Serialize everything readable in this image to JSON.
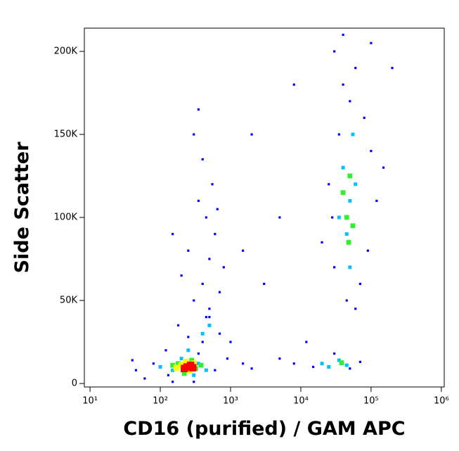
{
  "chart_data": {
    "type": "scatter",
    "x_label": "CD16 (purified) / GAM APC",
    "y_label": "Side Scatter",
    "x_scale": "log",
    "xlim": [
      8.3,
      1100000
    ],
    "xticks": [
      {
        "value": 10,
        "label": "10¹"
      },
      {
        "value": 100,
        "label": "10²"
      },
      {
        "value": 1000,
        "label": "10³"
      },
      {
        "value": 10000,
        "label": "10⁴"
      },
      {
        "value": 100000,
        "label": "10⁵"
      },
      {
        "value": 1000000,
        "label": "10⁶"
      }
    ],
    "ylim": [
      -2100,
      214000
    ],
    "yticks": [
      0,
      {
        "value": 50000,
        "label": "50K"
      },
      {
        "value": 100000,
        "label": "100K"
      },
      {
        "value": 150000,
        "label": "150K"
      },
      {
        "value": 200000,
        "label": "200K"
      }
    ],
    "series": [
      {
        "color": "#0000ff",
        "x": [
          60,
          80,
          120,
          150,
          400,
          600,
          900,
          45,
          1500,
          700,
          350,
          250,
          180,
          500,
          1000,
          130,
          300,
          2000,
          40,
          300,
          400,
          500,
          600,
          450,
          350,
          550,
          400,
          300,
          250,
          700,
          200,
          650,
          500,
          800,
          150,
          350,
          450,
          30000,
          40000,
          60000,
          50000,
          80000,
          35000,
          100000,
          25000,
          120000,
          30000,
          70000,
          45000,
          90000,
          200000,
          150000,
          28000,
          60000,
          40000,
          100000,
          20000,
          8000,
          15000,
          30000,
          50000,
          5000,
          70000,
          12000,
          3000,
          5000,
          2000,
          8000,
          1500
        ],
        "y": [
          3000,
          12000,
          20000,
          1000,
          25000,
          8000,
          15000,
          8000,
          12000,
          30000,
          18000,
          28000,
          35000,
          40000,
          25000,
          5000,
          1000,
          9000,
          14000,
          50000,
          60000,
          75000,
          90000,
          100000,
          110000,
          120000,
          135000,
          150000,
          80000,
          55000,
          65000,
          105000,
          45000,
          70000,
          90000,
          165000,
          40000,
          200000,
          180000,
          190000,
          170000,
          160000,
          150000,
          140000,
          120000,
          110000,
          70000,
          60000,
          50000,
          80000,
          190000,
          130000,
          100000,
          45000,
          210000,
          205000,
          85000,
          12000,
          10000,
          18000,
          9000,
          15000,
          13000,
          25000,
          60000,
          100000,
          150000,
          180000,
          80000
        ]
      },
      {
        "color": "#00c0ff",
        "x": [
          150,
          200,
          350,
          100,
          450,
          250,
          300,
          400,
          500,
          40000,
          50000,
          45000,
          60000,
          35000,
          55000,
          50000,
          20000,
          35000,
          45000,
          25000
        ],
        "y": [
          8000,
          15000,
          12000,
          10000,
          8000,
          20000,
          5000,
          30000,
          35000,
          130000,
          110000,
          90000,
          120000,
          100000,
          150000,
          70000,
          12000,
          14000,
          11000,
          10000
        ]
      },
      {
        "color": "#30f030",
        "x": [
          180,
          320,
          220,
          280,
          150,
          380,
          45000,
          50000,
          40000,
          55000,
          48000,
          38000
        ],
        "y": [
          12000,
          9000,
          6000,
          14000,
          11000,
          11000,
          100000,
          125000,
          115000,
          95000,
          85000,
          12500
        ]
      },
      {
        "color": "#ffff00",
        "x": [
          200,
          260,
          300,
          230,
          170
        ],
        "y": [
          11000,
          8000,
          12000,
          13000,
          9500
        ]
      },
      {
        "color": "#ff0000",
        "x": [
          240,
          270,
          220,
          290
        ],
        "y": [
          10000,
          11000,
          9000,
          9500
        ]
      }
    ]
  }
}
